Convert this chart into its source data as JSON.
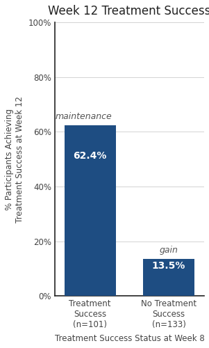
{
  "title": "Week 12 Treatment Success",
  "categories": [
    "Treatment\nSuccess\n(n=101)",
    "No Treatment\nSuccess\n(n=133)"
  ],
  "values": [
    62.4,
    13.5
  ],
  "bar_color": "#1e4d82",
  "bar_labels": [
    "62.4%",
    "13.5%"
  ],
  "annotations": [
    "maintenance",
    "gain"
  ],
  "xlabel": "Treatment Success Status at Week 8",
  "ylabel": "% Participants Achieving\nTreatment Success at Week 12",
  "ylim": [
    0,
    100
  ],
  "yticks": [
    0,
    20,
    40,
    60,
    80,
    100
  ],
  "ytick_labels": [
    "0%",
    "20%",
    "40%",
    "60%",
    "80%",
    "100%"
  ],
  "title_fontsize": 12,
  "axis_label_fontsize": 8.5,
  "tick_fontsize": 8.5,
  "bar_label_fontsize": 10,
  "annotation_fontsize": 9,
  "bar_width": 0.65,
  "x_positions": [
    0,
    1
  ],
  "xlim": [
    -0.45,
    1.45
  ],
  "spine_color": "#333333",
  "grid_color": "#cccccc",
  "text_color": "#444444",
  "annotation_color": "#555555"
}
